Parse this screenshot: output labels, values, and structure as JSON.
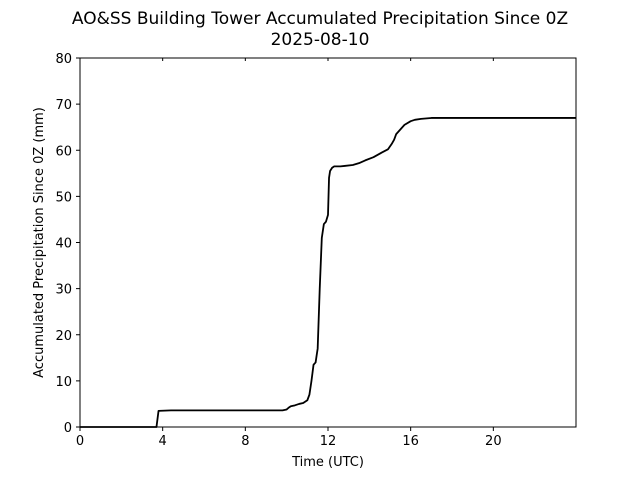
{
  "chart_data": {
    "type": "line",
    "title": "AO&SS Building Tower Accumulated Precipitation Since 0Z",
    "subtitle": "2025-08-10",
    "xlabel": "Time (UTC)",
    "ylabel": "Accumulated Precipitation Since 0Z (mm)",
    "xlim": [
      0,
      24
    ],
    "ylim": [
      0,
      80
    ],
    "xticks": [
      0,
      4,
      8,
      12,
      16,
      20
    ],
    "yticks": [
      0,
      10,
      20,
      30,
      40,
      50,
      60,
      70,
      80
    ],
    "grid": false,
    "line_color": "#000000",
    "series": [
      {
        "x": [
          0,
          3.7,
          3.8,
          4.4,
          9.8,
          10.0,
          10.1,
          10.2,
          10.4,
          10.6,
          10.8,
          11.0,
          11.1,
          11.2,
          11.3,
          11.4,
          11.45,
          11.5,
          11.6,
          11.7,
          11.8,
          11.9,
          12.0,
          12.05,
          12.1,
          12.2,
          12.3,
          12.6,
          12.8,
          13.2,
          13.5,
          13.8,
          14.2,
          14.6,
          14.9,
          15.1,
          15.2,
          15.3,
          15.5,
          15.7,
          16.0,
          16.2,
          16.5,
          17.0,
          17.5,
          24
        ],
        "y": [
          0,
          0,
          3.5,
          3.6,
          3.6,
          3.8,
          4.2,
          4.5,
          4.7,
          5.0,
          5.2,
          5.8,
          7.0,
          10.0,
          13.5,
          14.0,
          15.5,
          17.0,
          30.0,
          41.0,
          44.0,
          44.5,
          46.0,
          54.0,
          55.5,
          56.2,
          56.5,
          56.5,
          56.6,
          56.8,
          57.2,
          57.8,
          58.5,
          59.5,
          60.2,
          61.5,
          62.3,
          63.5,
          64.5,
          65.5,
          66.3,
          66.6,
          66.8,
          67.0,
          67.0,
          67.0
        ]
      }
    ]
  }
}
